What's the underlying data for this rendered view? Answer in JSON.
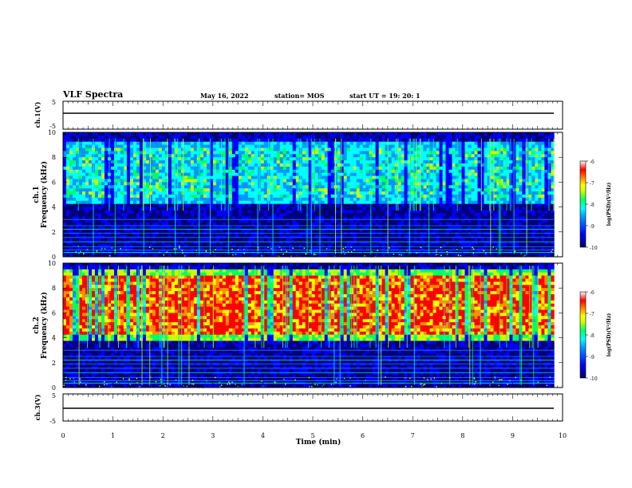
{
  "header": {
    "title": "VLF Spectra",
    "date": "May 16, 2022",
    "station": "station= MOS",
    "start": "start  UT =   19: 20: 1"
  },
  "chart_data": [
    {
      "type": "line",
      "id": "ch1-voltage",
      "ylabel": "ch.1(V)",
      "ylim": [
        -5,
        5
      ],
      "yticks": [
        "5",
        "-5"
      ],
      "x": [
        0,
        9.83
      ],
      "values": [
        -1,
        -1
      ]
    },
    {
      "type": "heatmap",
      "id": "ch1-spectrogram",
      "ylabel": "ch.1\nFrequency (kHz)",
      "ylim": [
        0,
        10
      ],
      "yticks": [
        "0",
        "2",
        "4",
        "6",
        "8",
        "10"
      ],
      "xlim": [
        0,
        9.83
      ],
      "band_khz": [
        4.2,
        9.2
      ],
      "colorbar": {
        "label": "log(PSD)(V²/Hz)",
        "range": [
          -10,
          -6
        ],
        "ticks": [
          "-6",
          "-7",
          "-8",
          "-9",
          "-10"
        ]
      }
    },
    {
      "type": "heatmap",
      "id": "ch2-spectrogram",
      "ylabel": "ch.2\nFrequency (kHz)",
      "ylim": [
        0,
        10
      ],
      "yticks": [
        "0",
        "2",
        "4",
        "6",
        "8",
        "10"
      ],
      "xlim": [
        0,
        9.83
      ],
      "band_khz": [
        3.7,
        9.5
      ],
      "colorbar": {
        "label": "log(PSD)(V²/Hz)",
        "range": [
          -10,
          -6
        ],
        "ticks": [
          "-6",
          "-7",
          "-8",
          "-9",
          "-10"
        ]
      }
    },
    {
      "type": "line",
      "id": "ch3-voltage",
      "ylabel": "ch.3(V)",
      "ylim": [
        -5,
        5
      ],
      "yticks": [
        "5",
        "-5"
      ],
      "x": [
        0,
        9.83
      ],
      "values": [
        -1,
        -1
      ]
    }
  ],
  "xaxis": {
    "label": "Time (min)",
    "range": [
      0,
      10
    ],
    "ticks": [
      "0",
      "1",
      "2",
      "3",
      "4",
      "5",
      "6",
      "7",
      "8",
      "9",
      "10"
    ]
  },
  "colormap": [
    "#00007a",
    "#0000ff",
    "#0096ff",
    "#00ffff",
    "#00ff64",
    "#c8ff00",
    "#ffff00",
    "#ff8c00",
    "#ff0000",
    "#ffffff"
  ]
}
